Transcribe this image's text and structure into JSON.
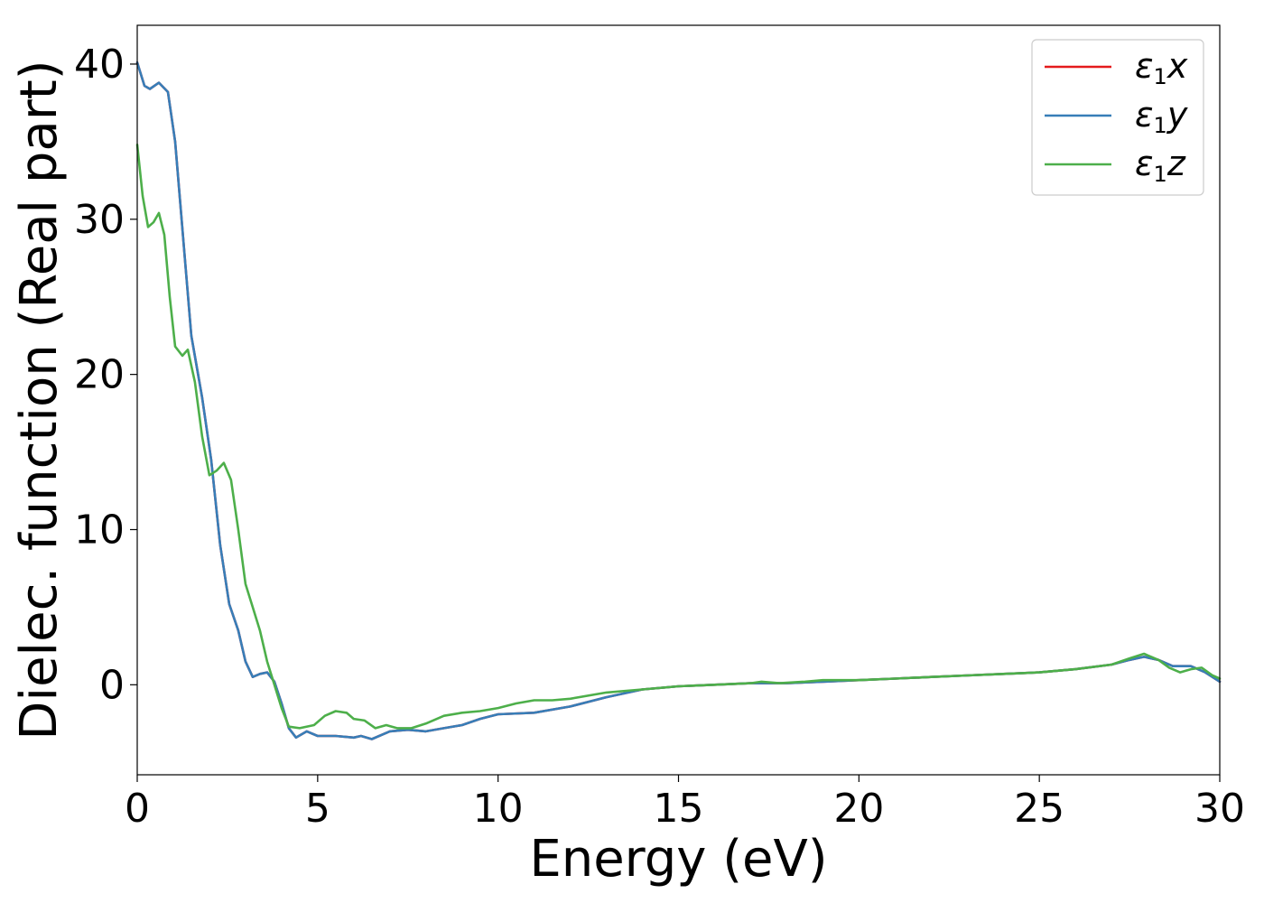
{
  "chart_data": {
    "type": "line",
    "title": "",
    "xlabel": "Energy (eV)",
    "ylabel": "Dielec. function (Real part)",
    "xlim": [
      0,
      30
    ],
    "ylim": [
      -5.8,
      42.5
    ],
    "xticks": [
      0,
      5,
      10,
      15,
      20,
      25,
      30
    ],
    "yticks": [
      0,
      10,
      20,
      30,
      40
    ],
    "grid": false,
    "legend_position": "top-right",
    "legend": [
      {
        "symbol": "ε",
        "sub": "1",
        "var": "x",
        "color": "#e41a1c"
      },
      {
        "symbol": "ε",
        "sub": "1",
        "var": "y",
        "color": "#377eb8"
      },
      {
        "symbol": "ε",
        "sub": "1",
        "var": "z",
        "color": "#4daf4a"
      }
    ],
    "series": [
      {
        "color": "#e41a1c",
        "points": [
          [
            0,
            40.1
          ],
          [
            0.2,
            38.6
          ],
          [
            0.35,
            38.4
          ],
          [
            0.6,
            38.8
          ],
          [
            0.85,
            38.2
          ],
          [
            1.05,
            35.0
          ],
          [
            1.3,
            28.0
          ],
          [
            1.5,
            22.5
          ],
          [
            1.8,
            18.5
          ],
          [
            2.05,
            14.5
          ],
          [
            2.3,
            9.0
          ],
          [
            2.55,
            5.2
          ],
          [
            2.8,
            3.5
          ],
          [
            3.0,
            1.5
          ],
          [
            3.2,
            0.5
          ],
          [
            3.4,
            0.7
          ],
          [
            3.6,
            0.8
          ],
          [
            3.8,
            0.2
          ],
          [
            4.0,
            -1.2
          ],
          [
            4.2,
            -2.8
          ],
          [
            4.4,
            -3.4
          ],
          [
            4.7,
            -3.0
          ],
          [
            5.0,
            -3.3
          ],
          [
            5.5,
            -3.3
          ],
          [
            6.0,
            -3.4
          ],
          [
            6.2,
            -3.3
          ],
          [
            6.5,
            -3.5
          ],
          [
            7.0,
            -3.0
          ],
          [
            7.5,
            -2.9
          ],
          [
            8.0,
            -3.0
          ],
          [
            8.5,
            -2.8
          ],
          [
            9.0,
            -2.6
          ],
          [
            9.5,
            -2.2
          ],
          [
            10.0,
            -1.9
          ],
          [
            11.0,
            -1.8
          ],
          [
            12.0,
            -1.4
          ],
          [
            13.0,
            -0.8
          ],
          [
            14.0,
            -0.3
          ],
          [
            15.0,
            -0.1
          ],
          [
            16.0,
            0.0
          ],
          [
            17.0,
            0.1
          ],
          [
            18.0,
            0.1
          ],
          [
            19.0,
            0.2
          ],
          [
            20.0,
            0.3
          ],
          [
            21.0,
            0.4
          ],
          [
            22.0,
            0.5
          ],
          [
            23.0,
            0.6
          ],
          [
            24.0,
            0.7
          ],
          [
            25.0,
            0.8
          ],
          [
            26.0,
            1.0
          ],
          [
            27.0,
            1.3
          ],
          [
            27.5,
            1.6
          ],
          [
            27.9,
            1.8
          ],
          [
            28.3,
            1.6
          ],
          [
            28.7,
            1.2
          ],
          [
            29.2,
            1.2
          ],
          [
            29.6,
            0.8
          ],
          [
            30.0,
            0.2
          ]
        ]
      },
      {
        "color": "#377eb8",
        "points": [
          [
            0,
            40.1
          ],
          [
            0.2,
            38.6
          ],
          [
            0.35,
            38.4
          ],
          [
            0.6,
            38.8
          ],
          [
            0.85,
            38.2
          ],
          [
            1.05,
            35.0
          ],
          [
            1.3,
            28.0
          ],
          [
            1.5,
            22.5
          ],
          [
            1.8,
            18.5
          ],
          [
            2.05,
            14.5
          ],
          [
            2.3,
            9.0
          ],
          [
            2.55,
            5.2
          ],
          [
            2.8,
            3.5
          ],
          [
            3.0,
            1.5
          ],
          [
            3.2,
            0.5
          ],
          [
            3.4,
            0.7
          ],
          [
            3.6,
            0.8
          ],
          [
            3.8,
            0.2
          ],
          [
            4.0,
            -1.2
          ],
          [
            4.2,
            -2.8
          ],
          [
            4.4,
            -3.4
          ],
          [
            4.7,
            -3.0
          ],
          [
            5.0,
            -3.3
          ],
          [
            5.5,
            -3.3
          ],
          [
            6.0,
            -3.4
          ],
          [
            6.2,
            -3.3
          ],
          [
            6.5,
            -3.5
          ],
          [
            7.0,
            -3.0
          ],
          [
            7.5,
            -2.9
          ],
          [
            8.0,
            -3.0
          ],
          [
            8.5,
            -2.8
          ],
          [
            9.0,
            -2.6
          ],
          [
            9.5,
            -2.2
          ],
          [
            10.0,
            -1.9
          ],
          [
            11.0,
            -1.8
          ],
          [
            12.0,
            -1.4
          ],
          [
            13.0,
            -0.8
          ],
          [
            14.0,
            -0.3
          ],
          [
            15.0,
            -0.1
          ],
          [
            16.0,
            0.0
          ],
          [
            17.0,
            0.1
          ],
          [
            18.0,
            0.1
          ],
          [
            19.0,
            0.2
          ],
          [
            20.0,
            0.3
          ],
          [
            21.0,
            0.4
          ],
          [
            22.0,
            0.5
          ],
          [
            23.0,
            0.6
          ],
          [
            24.0,
            0.7
          ],
          [
            25.0,
            0.8
          ],
          [
            26.0,
            1.0
          ],
          [
            27.0,
            1.3
          ],
          [
            27.5,
            1.6
          ],
          [
            27.9,
            1.8
          ],
          [
            28.3,
            1.6
          ],
          [
            28.7,
            1.2
          ],
          [
            29.2,
            1.2
          ],
          [
            29.6,
            0.8
          ],
          [
            30.0,
            0.2
          ]
        ]
      },
      {
        "color": "#4daf4a",
        "points": [
          [
            0,
            34.8
          ],
          [
            0.15,
            31.5
          ],
          [
            0.3,
            29.5
          ],
          [
            0.45,
            29.8
          ],
          [
            0.6,
            30.4
          ],
          [
            0.75,
            29.0
          ],
          [
            0.9,
            25.0
          ],
          [
            1.05,
            21.8
          ],
          [
            1.25,
            21.2
          ],
          [
            1.4,
            21.6
          ],
          [
            1.6,
            19.5
          ],
          [
            1.8,
            16.0
          ],
          [
            2.0,
            13.5
          ],
          [
            2.2,
            13.8
          ],
          [
            2.4,
            14.3
          ],
          [
            2.6,
            13.2
          ],
          [
            2.8,
            10.0
          ],
          [
            3.0,
            6.5
          ],
          [
            3.2,
            5.0
          ],
          [
            3.4,
            3.5
          ],
          [
            3.6,
            1.5
          ],
          [
            3.8,
            0.0
          ],
          [
            4.0,
            -1.5
          ],
          [
            4.2,
            -2.7
          ],
          [
            4.5,
            -2.8
          ],
          [
            4.9,
            -2.6
          ],
          [
            5.2,
            -2.0
          ],
          [
            5.5,
            -1.7
          ],
          [
            5.8,
            -1.8
          ],
          [
            6.0,
            -2.2
          ],
          [
            6.3,
            -2.3
          ],
          [
            6.6,
            -2.8
          ],
          [
            6.9,
            -2.6
          ],
          [
            7.2,
            -2.8
          ],
          [
            7.6,
            -2.8
          ],
          [
            8.0,
            -2.5
          ],
          [
            8.5,
            -2.0
          ],
          [
            9.0,
            -1.8
          ],
          [
            9.5,
            -1.7
          ],
          [
            10.0,
            -1.5
          ],
          [
            10.5,
            -1.2
          ],
          [
            11.0,
            -1.0
          ],
          [
            11.5,
            -1.0
          ],
          [
            12.0,
            -0.9
          ],
          [
            13.0,
            -0.5
          ],
          [
            14.0,
            -0.3
          ],
          [
            15.0,
            -0.1
          ],
          [
            16.0,
            0.0
          ],
          [
            17.0,
            0.1
          ],
          [
            17.3,
            0.2
          ],
          [
            17.8,
            0.1
          ],
          [
            18.5,
            0.2
          ],
          [
            19.0,
            0.3
          ],
          [
            20.0,
            0.3
          ],
          [
            21.0,
            0.4
          ],
          [
            22.0,
            0.5
          ],
          [
            23.0,
            0.6
          ],
          [
            24.0,
            0.7
          ],
          [
            25.0,
            0.8
          ],
          [
            26.0,
            1.0
          ],
          [
            27.0,
            1.3
          ],
          [
            27.5,
            1.7
          ],
          [
            27.9,
            2.0
          ],
          [
            28.3,
            1.6
          ],
          [
            28.6,
            1.1
          ],
          [
            28.9,
            0.8
          ],
          [
            29.2,
            1.0
          ],
          [
            29.5,
            1.1
          ],
          [
            29.8,
            0.6
          ],
          [
            30.0,
            0.4
          ]
        ]
      }
    ]
  }
}
